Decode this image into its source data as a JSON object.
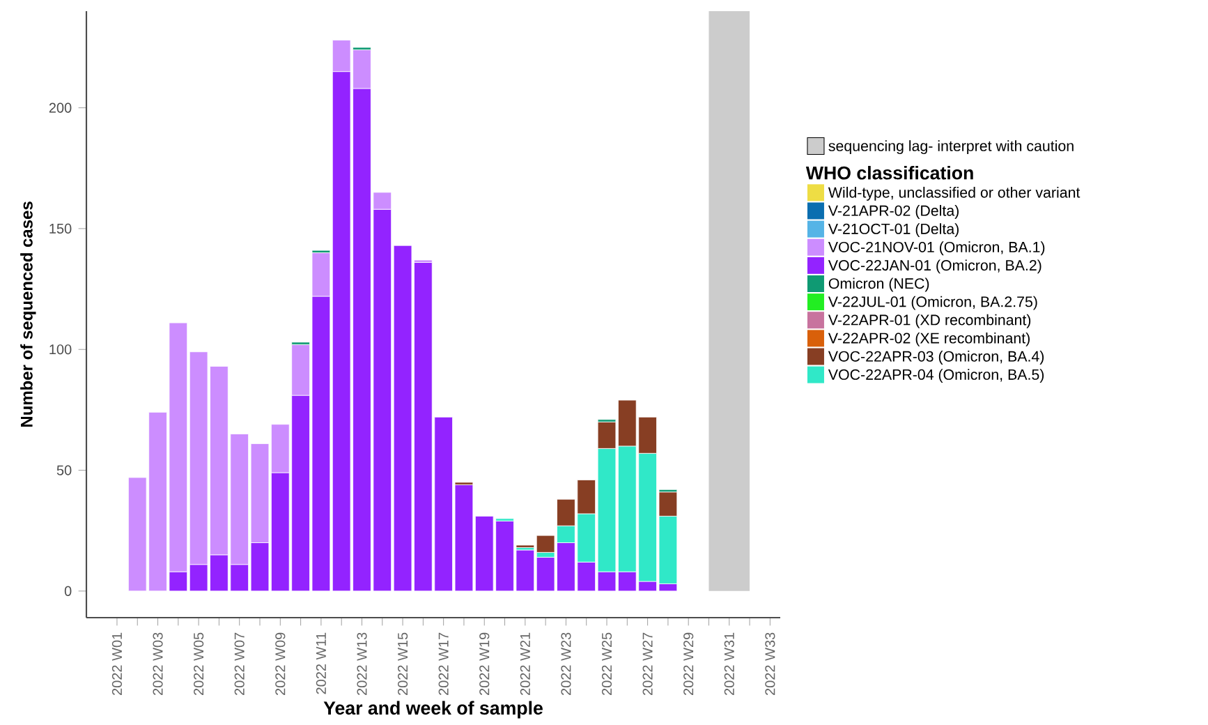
{
  "chart_data": {
    "type": "bar",
    "stacked": true,
    "xlabel": "Year and week of sample",
    "ylabel": "Number of sequenced cases",
    "legend_title": "WHO classification",
    "legend": "right",
    "categories": [
      "2022 W01",
      null,
      "2022 W03",
      null,
      "2022 W05",
      null,
      "2022 W07",
      null,
      "2022 W09",
      null,
      "2022 W11",
      null,
      "2022 W13",
      null,
      "2022 W15",
      null,
      "2022 W17",
      null,
      "2022 W19",
      null,
      "2022 W21",
      null,
      "2022 W23",
      null,
      "2022 W25",
      null,
      "2022 W27",
      null,
      "2022 W29",
      null,
      "2022 W31",
      null,
      "2022 W33"
    ],
    "ylim": [
      -11,
      240
    ],
    "yticks": [
      0,
      50,
      100,
      150,
      200
    ],
    "annotations": [
      "sequencing lag- interpret with caution"
    ],
    "series": [
      {
        "name": "VOC-22JAN-01 (Omicron, BA.2)",
        "color": "#9323ff",
        "values": [
          null,
          null,
          null,
          8,
          11,
          15,
          11,
          20,
          49,
          81,
          122,
          215,
          208,
          158,
          143,
          136,
          72,
          44,
          31,
          29,
          17,
          14,
          20,
          12,
          8,
          8,
          4,
          3,
          null,
          null,
          null,
          null,
          null
        ]
      },
      {
        "name": "VOC-21NOV-01 (Omicron, BA.1)",
        "color": "#cc8dff",
        "values": [
          null,
          47,
          74,
          103,
          88,
          78,
          54,
          41,
          20,
          21,
          18,
          13,
          16,
          7,
          null,
          1,
          null,
          null,
          null,
          null,
          null,
          null,
          null,
          null,
          null,
          null,
          null,
          null,
          null,
          null,
          null,
          null,
          null
        ]
      },
      {
        "name": "VOC-22APR-04 (Omicron, BA.5)",
        "color": "#30e8c8",
        "values": [
          null,
          null,
          null,
          null,
          null,
          null,
          null,
          null,
          null,
          null,
          null,
          null,
          null,
          null,
          null,
          null,
          null,
          null,
          null,
          1,
          1,
          2,
          7,
          20,
          51,
          52,
          53,
          28,
          null,
          null,
          null,
          null,
          null
        ]
      },
      {
        "name": "VOC-22APR-03 (Omicron, BA.4)",
        "color": "#873e23",
        "values": [
          null,
          null,
          null,
          null,
          null,
          null,
          null,
          null,
          null,
          null,
          null,
          null,
          null,
          null,
          null,
          null,
          null,
          1,
          null,
          null,
          1,
          7,
          11,
          14,
          11,
          19,
          15,
          10,
          null,
          null,
          null,
          null,
          null
        ]
      },
      {
        "name": "Omicron (NEC)",
        "color": "#0f9a73",
        "values": [
          null,
          null,
          null,
          null,
          null,
          null,
          null,
          null,
          null,
          1,
          1,
          null,
          1,
          null,
          null,
          null,
          null,
          null,
          null,
          null,
          null,
          null,
          null,
          null,
          1,
          null,
          null,
          1,
          null,
          null,
          null,
          null,
          null
        ]
      },
      {
        "name": "Wild-type, unclassified or other variant",
        "color": "#eedd44",
        "values": [
          null,
          null,
          null,
          null,
          null,
          null,
          null,
          null,
          null,
          null,
          null,
          null,
          null,
          null,
          null,
          null,
          null,
          null,
          null,
          null,
          null,
          null,
          null,
          null,
          null,
          null,
          null,
          null,
          null,
          null,
          null,
          null,
          null
        ]
      },
      {
        "name": "V-21APR-02 (Delta)",
        "color": "#0a6eb0",
        "values": [
          null,
          null,
          null,
          null,
          null,
          null,
          null,
          null,
          null,
          null,
          null,
          null,
          null,
          null,
          null,
          null,
          null,
          null,
          null,
          null,
          null,
          null,
          null,
          null,
          null,
          null,
          null,
          null,
          null,
          null,
          null,
          null,
          null
        ]
      },
      {
        "name": "V-21OCT-01 (Delta)",
        "color": "#55b4e6",
        "values": [
          null,
          null,
          null,
          null,
          null,
          null,
          null,
          null,
          null,
          null,
          null,
          null,
          null,
          null,
          null,
          null,
          null,
          null,
          null,
          null,
          null,
          null,
          null,
          null,
          null,
          null,
          null,
          null,
          null,
          null,
          null,
          null,
          null
        ]
      },
      {
        "name": "V-22JUL-01 (Omicron, BA.2.75)",
        "color": "#22ee22",
        "values": [
          null,
          null,
          null,
          null,
          null,
          null,
          null,
          null,
          null,
          null,
          null,
          null,
          null,
          null,
          null,
          null,
          null,
          null,
          null,
          null,
          null,
          null,
          null,
          null,
          null,
          null,
          null,
          null,
          null,
          null,
          null,
          null,
          null
        ]
      },
      {
        "name": "V-22APR-01 (XD recombinant)",
        "color": "#c8739e",
        "values": [
          null,
          null,
          null,
          null,
          null,
          null,
          null,
          null,
          null,
          null,
          null,
          null,
          null,
          null,
          null,
          null,
          null,
          null,
          null,
          null,
          null,
          null,
          null,
          null,
          null,
          null,
          null,
          null,
          null,
          null,
          null,
          null,
          null
        ]
      },
      {
        "name": "V-22APR-02 (XE recombinant)",
        "color": "#d9600a",
        "values": [
          null,
          null,
          null,
          null,
          null,
          null,
          null,
          null,
          null,
          null,
          null,
          null,
          null,
          null,
          null,
          null,
          null,
          null,
          null,
          null,
          null,
          null,
          null,
          null,
          null,
          null,
          null,
          null,
          null,
          null,
          null,
          null,
          null
        ]
      }
    ]
  }
}
